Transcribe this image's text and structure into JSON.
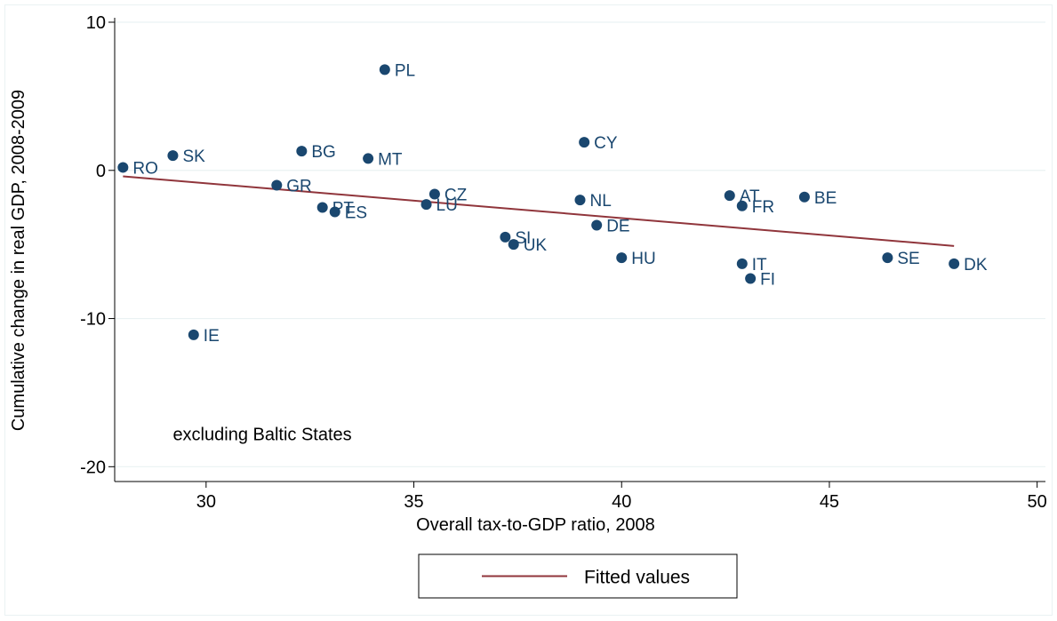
{
  "chart_data": {
    "type": "scatter",
    "xlabel": "Overall tax-to-GDP ratio, 2008",
    "ylabel": "Cumulative change in real GDP, 2008-2009",
    "annotation": "excluding Baltic States",
    "xlim": [
      27.8,
      50.2
    ],
    "ylim": [
      -21,
      10.3
    ],
    "x_ticks": [
      30,
      35,
      40,
      45,
      50
    ],
    "y_ticks": [
      -20,
      -10,
      0,
      10
    ],
    "grid": true,
    "legend_position": "bottom",
    "colors": {
      "point": "#1a476f",
      "label": "#1a476f",
      "fit": "#90353b",
      "grid": "#eaf2f3",
      "axis": "#000000"
    },
    "points": [
      {
        "label": "RO",
        "x": 28.0,
        "y": 0.2
      },
      {
        "label": "SK",
        "x": 29.2,
        "y": 1.0
      },
      {
        "label": "IE",
        "x": 29.7,
        "y": -11.1
      },
      {
        "label": "GR",
        "x": 31.7,
        "y": -1.0
      },
      {
        "label": "BG",
        "x": 32.3,
        "y": 1.3
      },
      {
        "label": "PT",
        "x": 32.8,
        "y": -2.5
      },
      {
        "label": "ES",
        "x": 33.1,
        "y": -2.8
      },
      {
        "label": "MT",
        "x": 33.9,
        "y": 0.8
      },
      {
        "label": "PL",
        "x": 34.3,
        "y": 6.8
      },
      {
        "label": "LU",
        "x": 35.3,
        "y": -2.3
      },
      {
        "label": "CZ",
        "x": 35.5,
        "y": -1.6
      },
      {
        "label": "SI",
        "x": 37.2,
        "y": -4.5
      },
      {
        "label": "UK",
        "x": 37.4,
        "y": -5.0
      },
      {
        "label": "NL",
        "x": 39.0,
        "y": -2.0
      },
      {
        "label": "CY",
        "x": 39.1,
        "y": 1.9
      },
      {
        "label": "DE",
        "x": 39.4,
        "y": -3.7
      },
      {
        "label": "HU",
        "x": 40.0,
        "y": -5.9
      },
      {
        "label": "AT",
        "x": 42.6,
        "y": -1.7
      },
      {
        "label": "FR",
        "x": 42.9,
        "y": -2.4
      },
      {
        "label": "IT",
        "x": 42.9,
        "y": -6.3
      },
      {
        "label": "FI",
        "x": 43.1,
        "y": -7.3
      },
      {
        "label": "BE",
        "x": 44.4,
        "y": -1.8
      },
      {
        "label": "SE",
        "x": 46.4,
        "y": -5.9
      },
      {
        "label": "DK",
        "x": 48.0,
        "y": -6.3
      }
    ],
    "series": [
      {
        "name": "Fitted values",
        "type": "line",
        "x": [
          28.0,
          48.0
        ],
        "y": [
          -0.4,
          -5.1
        ]
      }
    ]
  }
}
